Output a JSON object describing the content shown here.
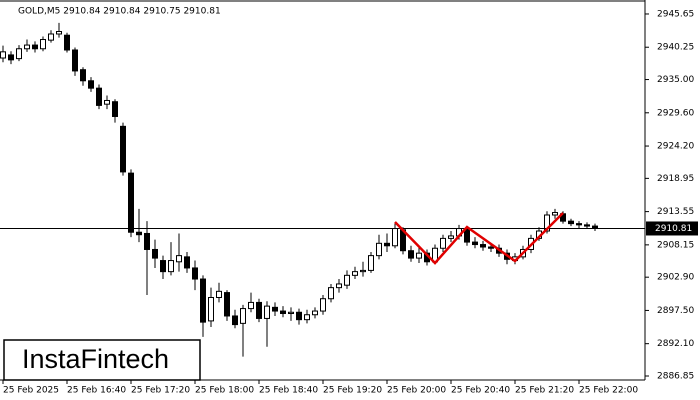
{
  "chart_data": {
    "type": "candlestick",
    "header": "GOLD,M5  2910.84 2910.84 2910.75 2910.81",
    "watermark": "InstaFintech",
    "open": [
      2938.5,
      2939,
      2938.4,
      2940,
      2940.6,
      2940,
      2941.4,
      2942.4,
      2942.2,
      2939.8,
      2936.6,
      2934.8,
      2933.6,
      2931,
      2931.4,
      2927.4,
      2919.8,
      2910.2,
      2910,
      2907.4,
      2905.6,
      2903.8,
      2905.4,
      2906.2,
      2904.4,
      2902.6,
      2895.8,
      2899.6,
      2900.4,
      2896.6,
      2895.4,
      2897.8,
      2898.8,
      2896.2,
      2898,
      2897.4,
      2897,
      2897.2,
      2896,
      2896.8,
      2897.4,
      2899.4,
      2901.2,
      2901.6,
      2903.2,
      2903.8,
      2904,
      2906.4,
      2908.4,
      2908,
      2910.6,
      2907.2,
      2906,
      2906.8,
      2905.4,
      2907.6,
      2909.2,
      2909.6,
      2910.8,
      2908.6,
      2908.2,
      2907.8,
      2907.6,
      2906.8,
      2905.6,
      2906.2,
      2907.4,
      2909.2,
      2910.4,
      2913,
      2913.2,
      2912,
      2911.6,
      2911.4,
      2911.2
    ],
    "close": [
      2939.5,
      2938.2,
      2940,
      2940.6,
      2940,
      2941.5,
      2942.4,
      2942.8,
      2939.8,
      2936.4,
      2934.8,
      2933.6,
      2930.8,
      2931.6,
      2929,
      2920,
      2910.2,
      2909.8,
      2907.4,
      2906,
      2903.8,
      2905.6,
      2906.4,
      2904.4,
      2902.6,
      2895.6,
      2899.6,
      2900.6,
      2896.6,
      2895.2,
      2897.8,
      2898.8,
      2896.2,
      2898.2,
      2897.4,
      2897,
      2897.2,
      2896,
      2896.8,
      2897.4,
      2899.4,
      2901.2,
      2901.8,
      2903.2,
      2903.8,
      2904,
      2906.4,
      2908.4,
      2908,
      2910.8,
      2907.2,
      2906,
      2906.8,
      2905.4,
      2907.6,
      2909.2,
      2909.6,
      2910.8,
      2908.6,
      2908.2,
      2907.8,
      2907.6,
      2906.8,
      2905.8,
      2906.2,
      2907.4,
      2909.2,
      2910.4,
      2913,
      2913.4,
      2912,
      2911.6,
      2911.4,
      2911.2,
      2910.81
    ],
    "high": [
      2940.5,
      2939.6,
      2940.6,
      2941.5,
      2941.2,
      2942,
      2943,
      2944.2,
      2942.6,
      2940.2,
      2937,
      2935.4,
      2934.2,
      2932.4,
      2931.8,
      2928,
      2920.4,
      2914,
      2912,
      2909,
      2906.4,
      2908.6,
      2910,
      2907,
      2905.6,
      2903.2,
      2901.2,
      2902,
      2900.8,
      2897.6,
      2898.4,
      2900.4,
      2899.4,
      2899,
      2898.8,
      2898.2,
      2898,
      2897.8,
      2897.6,
      2898,
      2900,
      2901.8,
      2902.6,
      2904,
      2904.6,
      2905.4,
      2907,
      2909.8,
      2910,
      2911.6,
      2911,
      2908,
      2907.8,
      2907.4,
      2908.2,
      2909.8,
      2910.4,
      2911.4,
      2911.2,
      2909.4,
      2908.8,
      2908.4,
      2908.2,
      2907.4,
      2906.8,
      2908,
      2909.8,
      2911,
      2913.6,
      2914,
      2913.6,
      2912.4,
      2912,
      2911.8,
      2911.6
    ],
    "low": [
      2937.8,
      2937.5,
      2938,
      2939.5,
      2939.4,
      2939.6,
      2941,
      2941.8,
      2939.4,
      2935.6,
      2934,
      2933,
      2930.2,
      2930.2,
      2928,
      2919.4,
      2909.4,
      2908.6,
      2900,
      2904.4,
      2902.6,
      2903.2,
      2903.8,
      2903.6,
      2900.8,
      2893.2,
      2894.8,
      2898.8,
      2895.8,
      2894.6,
      2890,
      2897.2,
      2895.6,
      2891.6,
      2896.6,
      2896.4,
      2895.8,
      2895.2,
      2895.4,
      2896.2,
      2896.8,
      2898.8,
      2900.4,
      2901,
      2902.6,
      2903,
      2903.6,
      2905.8,
      2907,
      2907.6,
      2906.6,
      2905.4,
      2905.2,
      2904.8,
      2905,
      2907,
      2908.6,
      2909,
      2908,
      2907.6,
      2907.2,
      2907,
      2906.2,
      2905,
      2905,
      2905.8,
      2906.8,
      2908.8,
      2910,
      2912.4,
      2911.6,
      2911.2,
      2910.8,
      2910.8,
      2910.4
    ],
    "up_color": "#ffffff",
    "down_color": "#000000",
    "current_price": 2910.81,
    "pattern": {
      "x": [
        49,
        54,
        58,
        64,
        70
      ],
      "y": [
        2911.86,
        2905.2,
        2911.05,
        2905.53,
        2913.32
      ],
      "color": "#e00000"
    },
    "xlim": [
      -0.375,
      80.25
    ],
    "xticks": [
      {
        "value": 0,
        "label": "25 Feb 2025"
      },
      {
        "value": 8,
        "label": "25 Feb 16:40"
      },
      {
        "value": 16,
        "label": "25 Feb 17:20"
      },
      {
        "value": 24,
        "label": "25 Feb 18:00"
      },
      {
        "value": 32,
        "label": "25 Feb 18:40"
      },
      {
        "value": 40,
        "label": "25 Feb 19:20"
      },
      {
        "value": 48,
        "label": "25 Feb 20:00"
      },
      {
        "value": 56,
        "label": "25 Feb 20:40"
      },
      {
        "value": 64,
        "label": "25 Feb 21:20"
      },
      {
        "value": 72,
        "label": "25 Feb 22:00"
      }
    ],
    "ylim": [
      2886.2,
      2947.92
    ],
    "yticks": [
      2945.65,
      2940.25,
      {
        "value": 2935,
        "label": "2935.00"
      },
      {
        "value": 2929.6,
        "label": "2929.60"
      },
      {
        "value": 2924.2,
        "label": "2924.20"
      },
      2918.95,
      2913.55,
      2908.15,
      {
        "value": 2902.9,
        "label": "2902.90"
      },
      {
        "value": 2897.5,
        "label": "2897.50"
      },
      {
        "value": 2892.1,
        "label": "2892.10"
      },
      2886.85
    ]
  }
}
